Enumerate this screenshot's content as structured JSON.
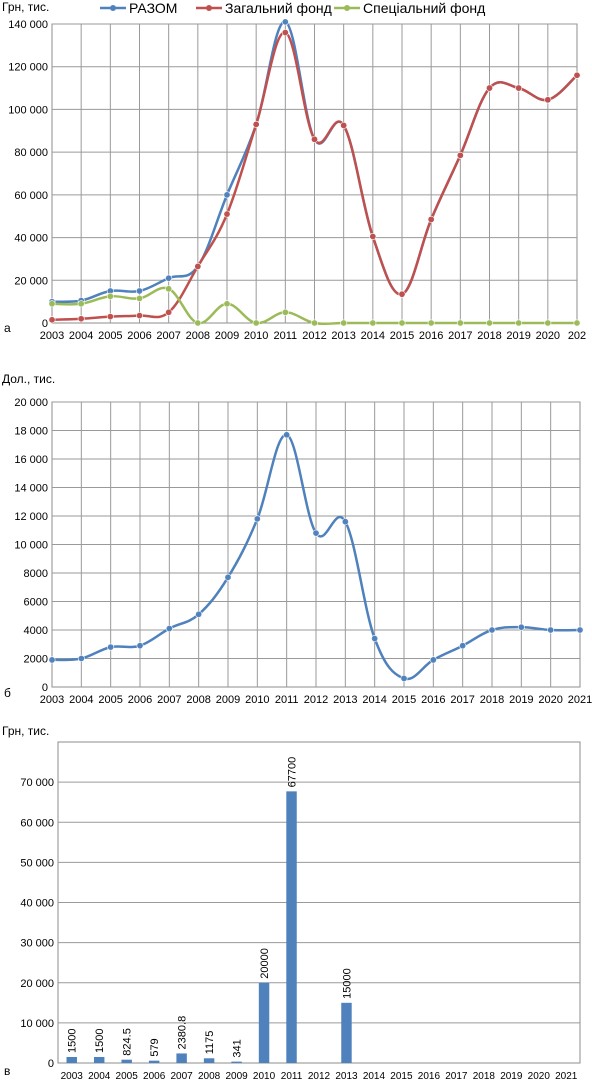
{
  "chart_data": [
    {
      "type": "line",
      "panel_label": "а",
      "ylabel": "Грн, тис.",
      "ylim": [
        0,
        140000
      ],
      "yticks": [
        "0",
        "20 000",
        "40 000",
        "60 000",
        "80 000",
        "100 000",
        "120 000",
        "140 000"
      ],
      "x": [
        "2003",
        "2004",
        "2005",
        "2006",
        "2007",
        "2008",
        "2009",
        "2010",
        "2011",
        "2012",
        "2013",
        "2014",
        "2015",
        "2016",
        "2017",
        "2018",
        "2019",
        "2020",
        "202"
      ],
      "x_extra_tick": "1",
      "grid": true,
      "legend": "top",
      "series": [
        {
          "name": "РАЗОМ",
          "color": "#4f81bd",
          "values": [
            10000,
            10500,
            15000,
            15000,
            21000,
            26500,
            60000,
            93000,
            141000,
            86000,
            92500,
            40500,
            13500,
            48500,
            78500,
            110000,
            110000,
            104500,
            116000
          ]
        },
        {
          "name": "Загальний фонд",
          "color": "#c0504d",
          "values": [
            1500,
            2000,
            3000,
            3500,
            5000,
            26500,
            51000,
            93000,
            136000,
            86000,
            92500,
            40500,
            13500,
            48500,
            78500,
            110000,
            110000,
            104500,
            116000
          ]
        },
        {
          "name": "Спеціальний фонд",
          "color": "#9bbb59",
          "values": [
            9000,
            9000,
            12500,
            11500,
            16000,
            0,
            9000,
            0,
            5000,
            0,
            0,
            0,
            0,
            0,
            0,
            0,
            0,
            0,
            0
          ]
        }
      ]
    },
    {
      "type": "line",
      "panel_label": "б",
      "ylabel": "Дол., тис.",
      "ylim": [
        0,
        20000
      ],
      "yticks": [
        "0",
        "2000",
        "4000",
        "6000",
        "8000",
        "10 000",
        "12 000",
        "14 000",
        "16 000",
        "18 000",
        "20 000"
      ],
      "x": [
        "2003",
        "2004",
        "2005",
        "2006",
        "2007",
        "2008",
        "2009",
        "2010",
        "2011",
        "2012",
        "2013",
        "2014",
        "2015",
        "2016",
        "2017",
        "2018",
        "2019",
        "2020",
        "2021"
      ],
      "grid": true,
      "series": [
        {
          "color": "#4f81bd",
          "values": [
            1900,
            2000,
            2800,
            2900,
            4100,
            5100,
            7700,
            11800,
            17700,
            10800,
            11600,
            3400,
            600,
            1900,
            2900,
            4000,
            4200,
            4000,
            4000
          ]
        }
      ]
    },
    {
      "type": "bar",
      "panel_label": "в",
      "ylabel": "Грн, тис.",
      "ylim": [
        0,
        80000
      ],
      "yticks": [
        "0",
        "10 000",
        "20 000",
        "30 000",
        "40 000",
        "50 000",
        "60 000",
        "70 000"
      ],
      "categories": [
        "2003",
        "2004",
        "2005",
        "2006",
        "2007",
        "2008",
        "2009",
        "2010",
        "2011",
        "2012",
        "2013",
        "2014",
        "2015",
        "2016",
        "2017",
        "2018",
        "2019",
        "2020",
        "2021"
      ],
      "values": [
        1500,
        1500,
        824.5,
        579,
        2380.8,
        1175,
        341,
        20000,
        67700,
        0,
        15000,
        0,
        0,
        0,
        0,
        0,
        0,
        0,
        0
      ],
      "data_labels": [
        "1500",
        "1500",
        "824.5",
        "579",
        "2380.8",
        "1175",
        "341",
        "20000",
        "67700",
        "",
        "15000",
        "",
        "",
        "",
        "",
        "",
        "",
        "",
        ""
      ],
      "color": "#4f81bd",
      "grid": true
    }
  ]
}
